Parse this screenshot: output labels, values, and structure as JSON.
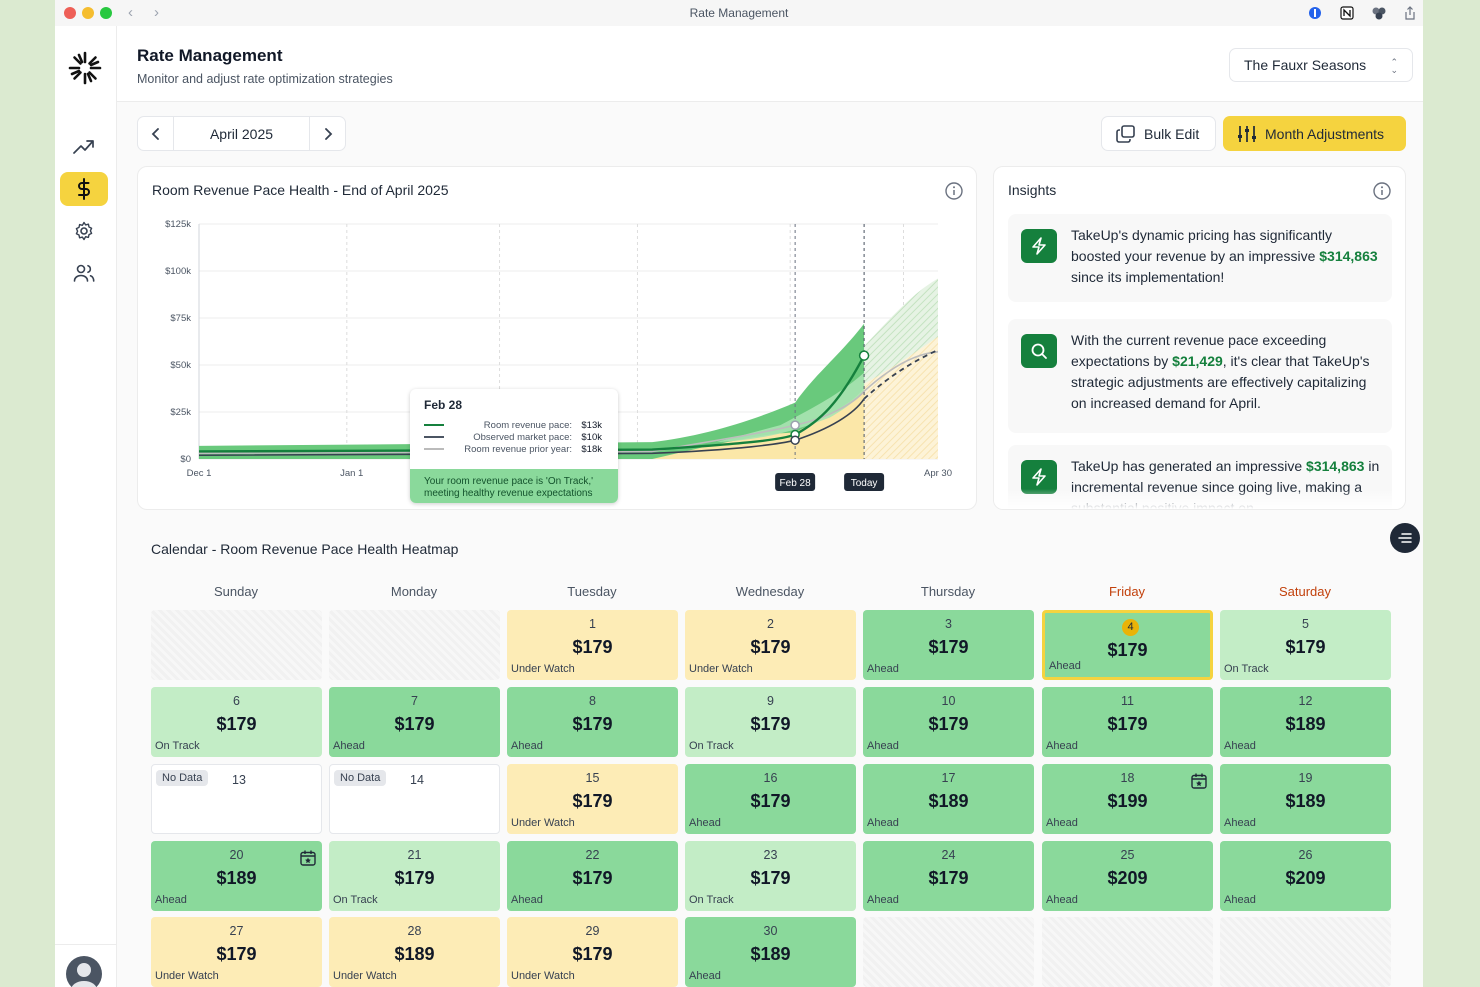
{
  "window": {
    "title": "Rate Management"
  },
  "header": {
    "title": "Rate Management",
    "subtitle": "Monitor and adjust rate optimization strategies",
    "property": "The Fauxr Seasons"
  },
  "toolbar": {
    "month": "April 2025",
    "bulk_edit": "Bulk Edit",
    "month_adjustments": "Month Adjustments"
  },
  "chart": {
    "title": "Room Revenue Pace Health - End of April 2025",
    "tooltip": {
      "date": "Feb 28",
      "rows": [
        {
          "label": "Room revenue pace:",
          "value": "$13k"
        },
        {
          "label": "Observed market pace:",
          "value": "$10k"
        },
        {
          "label": "Room revenue prior year:",
          "value": "$18k"
        }
      ],
      "status_line1": "Your room revenue pace is 'On Track,'",
      "status_line2": "meeting healthy revenue expectations"
    },
    "markers": {
      "cursor": "Feb 28",
      "today": "Today"
    }
  },
  "chart_data": {
    "type": "area",
    "title": "Room Revenue Pace Health - End of April 2025",
    "x_ticks": [
      "Dec 1",
      "Jan 1",
      "Apr 30"
    ],
    "y_ticks": [
      "$0",
      "$25k",
      "$50k",
      "$75k",
      "$100k",
      "$125k"
    ],
    "ylim": [
      0,
      125000
    ],
    "series": [
      {
        "name": "Room revenue pace",
        "x_days": [
          0,
          92,
          121,
          142
        ],
        "values": [
          4000,
          5000,
          13000,
          55000
        ]
      },
      {
        "name": "Observed market pace",
        "x_days": [
          0,
          92,
          121,
          142
        ],
        "values": [
          2000,
          3000,
          10000,
          35000
        ]
      },
      {
        "name": "Room revenue prior year",
        "x_days": [
          0,
          92,
          121,
          142,
          150
        ],
        "values": [
          3000,
          4000,
          18000,
          40000,
          65000
        ]
      }
    ]
  },
  "insights": {
    "title": "Insights",
    "items": [
      {
        "icon": "bolt-icon",
        "pre": "TakeUp's dynamic pricing has significantly boosted your revenue by an impressive ",
        "highlight": "$314,863",
        "post": " since its implementation!"
      },
      {
        "icon": "search-icon",
        "pre": "With the current revenue pace exceeding expectations by ",
        "highlight": "$21,429",
        "post": ", it's clear that TakeUp's strategic adjustments are effectively capitalizing on increased demand for April."
      },
      {
        "icon": "bolt-icon",
        "pre": "TakeUp has generated an impressive ",
        "highlight": "$314,863",
        "post": " in incremental revenue since going live, making a substantial positive impact on"
      }
    ]
  },
  "calendar": {
    "title": "Calendar - Room Revenue Pace Health Heatmap",
    "weekdays": [
      "Sunday",
      "Monday",
      "Tuesday",
      "Wednesday",
      "Thursday",
      "Friday",
      "Saturday"
    ],
    "no_data_label": "No Data",
    "days": [
      {
        "d": "1",
        "rate": "$179",
        "status": "Under Watch"
      },
      {
        "d": "2",
        "rate": "$179",
        "status": "Under Watch"
      },
      {
        "d": "3",
        "rate": "$179",
        "status": "Ahead"
      },
      {
        "d": "4",
        "rate": "$179",
        "status": "Ahead"
      },
      {
        "d": "5",
        "rate": "$179",
        "status": "On Track"
      },
      {
        "d": "6",
        "rate": "$179",
        "status": "On Track"
      },
      {
        "d": "7",
        "rate": "$179",
        "status": "Ahead"
      },
      {
        "d": "8",
        "rate": "$179",
        "status": "Ahead"
      },
      {
        "d": "9",
        "rate": "$179",
        "status": "On Track"
      },
      {
        "d": "10",
        "rate": "$179",
        "status": "Ahead"
      },
      {
        "d": "11",
        "rate": "$179",
        "status": "Ahead"
      },
      {
        "d": "12",
        "rate": "$189",
        "status": "Ahead"
      },
      {
        "d": "13",
        "rate": "",
        "status": ""
      },
      {
        "d": "14",
        "rate": "",
        "status": ""
      },
      {
        "d": "15",
        "rate": "$179",
        "status": "Under Watch"
      },
      {
        "d": "16",
        "rate": "$179",
        "status": "Ahead"
      },
      {
        "d": "17",
        "rate": "$189",
        "status": "Ahead"
      },
      {
        "d": "18",
        "rate": "$199",
        "status": "Ahead"
      },
      {
        "d": "19",
        "rate": "$189",
        "status": "Ahead"
      },
      {
        "d": "20",
        "rate": "$189",
        "status": "Ahead"
      },
      {
        "d": "21",
        "rate": "$179",
        "status": "On Track"
      },
      {
        "d": "22",
        "rate": "$179",
        "status": "Ahead"
      },
      {
        "d": "23",
        "rate": "$179",
        "status": "On Track"
      },
      {
        "d": "24",
        "rate": "$179",
        "status": "Ahead"
      },
      {
        "d": "25",
        "rate": "$209",
        "status": "Ahead"
      },
      {
        "d": "26",
        "rate": "$209",
        "status": "Ahead"
      },
      {
        "d": "27",
        "rate": "$179",
        "status": "Under Watch"
      },
      {
        "d": "28",
        "rate": "$189",
        "status": "Under Watch"
      },
      {
        "d": "29",
        "rate": "$179",
        "status": "Under Watch"
      },
      {
        "d": "30",
        "rate": "$189",
        "status": "Ahead"
      }
    ]
  },
  "colors": {
    "accent": "#f5d33f",
    "ahead": "#8ad99b",
    "on_track": "#c3edc6",
    "under_watch": "#fdecb6",
    "brand_green": "#15803d"
  }
}
